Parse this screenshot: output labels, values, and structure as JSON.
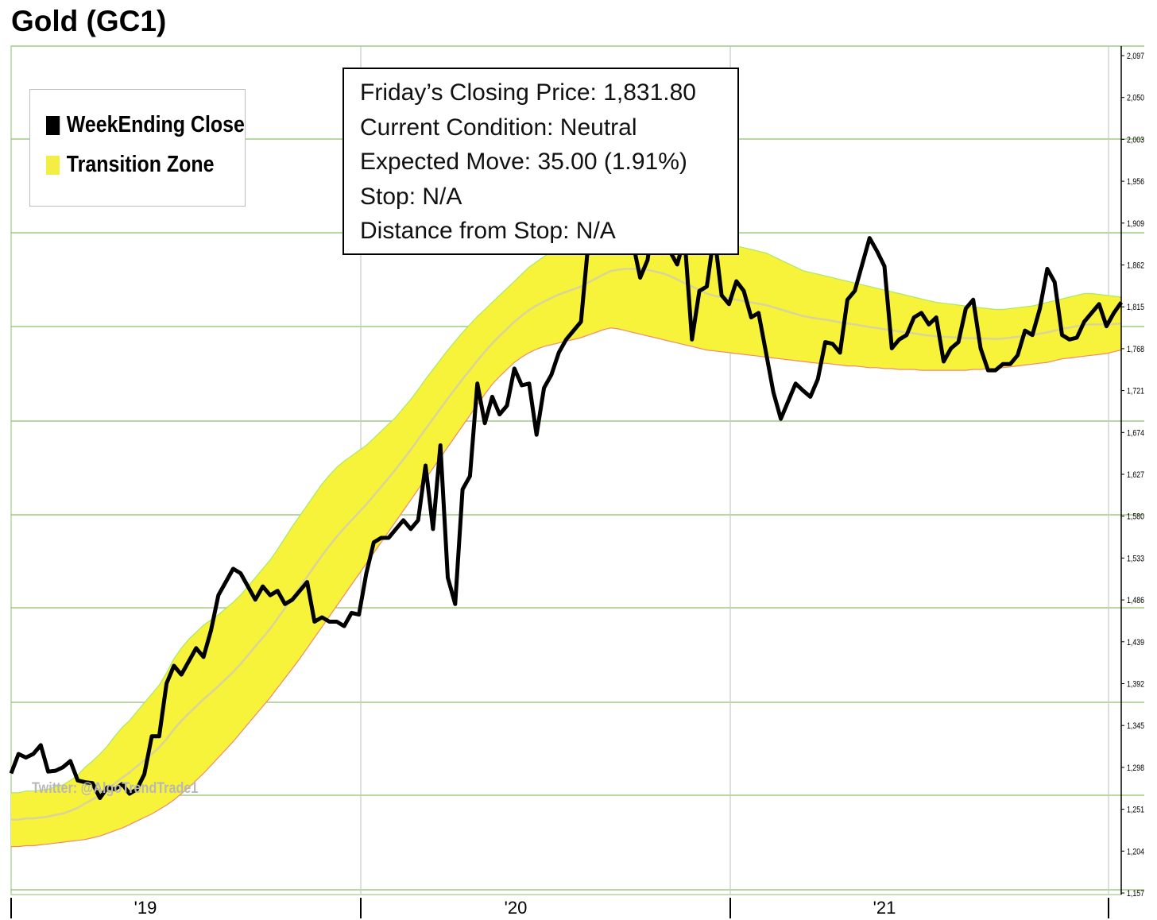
{
  "title": "Gold (GC1)",
  "legend": {
    "items": [
      {
        "label": "WeekEnding Close",
        "color": "#000000"
      },
      {
        "label": "Transition Zone",
        "color": "#f7f23a"
      }
    ]
  },
  "info_box": {
    "closing_price": "Friday’s Closing Price: 1,831.80",
    "condition": "Current Condition: Neutral",
    "expected_move": "Expected Move: 35.00 (1.91%)",
    "stop": "Stop: N/A",
    "distance": "Distance from Stop: N/A"
  },
  "watermark": "Twitter: @AlgoTrendTrade1",
  "colors": {
    "band_fill": "#f7f23a",
    "band_upper_edge": "#a8e86a",
    "band_lower_edge": "#f08a6a",
    "midline": "#d8d49a",
    "grid": "#8fbf6a",
    "price_line": "#000000"
  },
  "chart_data": {
    "type": "line",
    "title": "Gold (GC1)",
    "xlabel": "",
    "ylabel": "",
    "ylim": [
      1157,
      2119
    ],
    "y_ticks": [
      "1,157",
      "1,204",
      "1,251",
      "1,298",
      "1,345",
      "1,392",
      "1,439",
      "1,486",
      "1,533",
      "1,580",
      "1,627",
      "1,674",
      "1,721",
      "1,768",
      "1,815",
      "1,862",
      "1,909",
      "1,956",
      "2,003",
      "2,050",
      "2,097"
    ],
    "x_ticks": [
      {
        "label": "'19",
        "week": 24.5
      },
      {
        "label": "'20",
        "week": 78.5
      },
      {
        "label": "'21",
        "week": 131.5
      }
    ],
    "year_dividers": [
      0,
      57,
      116,
      178
    ],
    "x_range_weeks": [
      0,
      180
    ],
    "grid": true,
    "legend_position": "top-left",
    "series": [
      {
        "name": "WeekEnding Close",
        "values": [
          1298,
          1320,
          1316,
          1320,
          1330,
          1300,
          1301,
          1305,
          1312,
          1290,
          1288,
          1287,
          1270,
          1282,
          1280,
          1286,
          1275,
          1280,
          1297,
          1340,
          1340,
          1400,
          1420,
          1410,
          1425,
          1440,
          1430,
          1460,
          1500,
          1515,
          1530,
          1525,
          1510,
          1495,
          1510,
          1500,
          1505,
          1490,
          1495,
          1505,
          1515,
          1470,
          1475,
          1470,
          1470,
          1465,
          1480,
          1478,
          1525,
          1560,
          1565,
          1565,
          1575,
          1585,
          1575,
          1585,
          1647,
          1575,
          1670,
          1520,
          1490,
          1620,
          1635,
          1740,
          1695,
          1725,
          1705,
          1715,
          1757,
          1738,
          1740,
          1682,
          1735,
          1750,
          1775,
          1790,
          1800,
          1810,
          1900,
          1930,
          1960,
          1980,
          2000,
          1985,
          1900,
          1860,
          1880,
          1940,
          1910,
          1890,
          1875,
          1905,
          1790,
          1845,
          1850,
          1910,
          1840,
          1830,
          1856,
          1845,
          1815,
          1820,
          1775,
          1730,
          1700,
          1720,
          1740,
          1732,
          1725,
          1745,
          1787,
          1785,
          1775,
          1835,
          1845,
          1875,
          1905,
          1890,
          1873,
          1780,
          1790,
          1795,
          1815,
          1820,
          1807,
          1815,
          1765,
          1780,
          1787,
          1825,
          1835,
          1780,
          1755,
          1755,
          1762,
          1762,
          1772,
          1800,
          1795,
          1825,
          1870,
          1855,
          1795,
          1790,
          1792,
          1810,
          1820,
          1830,
          1805,
          1820,
          1832
        ]
      },
      {
        "name": "Transition Zone upper",
        "values": [
          1276,
          1276,
          1278,
          1278,
          1279,
          1280,
          1283,
          1285,
          1290,
          1296,
          1305,
          1312,
          1320,
          1329,
          1340,
          1350,
          1358,
          1368,
          1378,
          1388,
          1398,
          1412,
          1428,
          1440,
          1450,
          1458,
          1466,
          1472,
          1478,
          1485,
          1492,
          1500,
          1510,
          1520,
          1530,
          1540,
          1552,
          1565,
          1578,
          1590,
          1602,
          1614,
          1626,
          1636,
          1645,
          1652,
          1658,
          1664,
          1670,
          1678,
          1686,
          1694,
          1702,
          1712,
          1722,
          1733,
          1745,
          1756,
          1767,
          1778,
          1788,
          1798,
          1807,
          1816,
          1824,
          1832,
          1840,
          1848,
          1856,
          1864,
          1872,
          1878,
          1884,
          1890,
          1896,
          1900,
          1904,
          1908,
          1914,
          1920,
          1926,
          1932,
          1936,
          1940,
          1942,
          1944,
          1944,
          1942,
          1940,
          1936,
          1930,
          1924,
          1918,
          1912,
          1906,
          1902,
          1900,
          1898,
          1896,
          1894,
          1892,
          1890,
          1888,
          1884,
          1880,
          1876,
          1872,
          1868,
          1866,
          1864,
          1862,
          1860,
          1858,
          1856,
          1854,
          1852,
          1850,
          1848,
          1846,
          1844,
          1842,
          1840,
          1838,
          1836,
          1834,
          1832,
          1831,
          1830,
          1829,
          1828,
          1827,
          1826,
          1825,
          1824,
          1824,
          1825,
          1826,
          1827,
          1828,
          1830,
          1832,
          1834,
          1836,
          1838,
          1840,
          1842,
          1842,
          1841,
          1840,
          1839,
          1838
        ]
      },
      {
        "name": "Transition Zone lower",
        "values": [
          1215,
          1215,
          1216,
          1216,
          1217,
          1218,
          1219,
          1220,
          1221,
          1222,
          1223,
          1225,
          1227,
          1230,
          1233,
          1236,
          1240,
          1244,
          1248,
          1252,
          1257,
          1262,
          1268,
          1275,
          1282,
          1290,
          1298,
          1307,
          1316,
          1325,
          1334,
          1344,
          1354,
          1364,
          1374,
          1384,
          1395,
          1406,
          1417,
          1428,
          1440,
          1452,
          1464,
          1476,
          1488,
          1500,
          1512,
          1524,
          1536,
          1548,
          1560,
          1572,
          1584,
          1596,
          1608,
          1620,
          1632,
          1644,
          1656,
          1668,
          1680,
          1692,
          1704,
          1716,
          1728,
          1739,
          1748,
          1756,
          1764,
          1770,
          1775,
          1779,
          1782,
          1784,
          1786,
          1788,
          1790,
          1792,
          1795,
          1798,
          1801,
          1803,
          1802,
          1800,
          1798,
          1796,
          1794,
          1792,
          1790,
          1788,
          1786,
          1784,
          1782,
          1780,
          1778,
          1777,
          1776,
          1775,
          1774,
          1773,
          1772,
          1771,
          1770,
          1769,
          1768,
          1767,
          1766,
          1765,
          1764,
          1763,
          1763,
          1762,
          1761,
          1760,
          1760,
          1759,
          1758,
          1758,
          1757,
          1757,
          1756,
          1756,
          1756,
          1755,
          1755,
          1755,
          1755,
          1755,
          1755,
          1755,
          1756,
          1756,
          1757,
          1757,
          1758,
          1759,
          1760,
          1761,
          1762,
          1763,
          1764,
          1766,
          1768,
          1769,
          1770,
          1771,
          1772,
          1773,
          1774,
          1776,
          1778
        ]
      }
    ]
  }
}
